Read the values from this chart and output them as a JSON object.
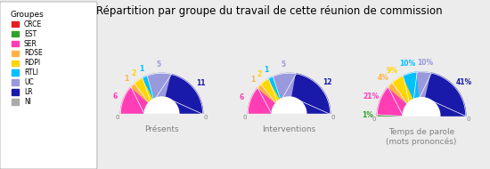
{
  "title": "Répartition par groupe du travail de cette réunion de commission",
  "groups": [
    "CRCE",
    "EST",
    "SER",
    "RDSE",
    "RDPI",
    "RTLI",
    "UC",
    "LR",
    "NI"
  ],
  "colors": [
    "#e31e24",
    "#33a02c",
    "#ff3eb5",
    "#ffb347",
    "#ffd700",
    "#00bfff",
    "#9999dd",
    "#1a1aaa",
    "#aaaaaa"
  ],
  "presentes": [
    0,
    0,
    6,
    1,
    2,
    1,
    5,
    11,
    0
  ],
  "interventions": [
    0,
    0,
    6,
    1,
    2,
    1,
    5,
    12,
    0
  ],
  "temps_parole": [
    0,
    1,
    21,
    4,
    9,
    10,
    10,
    41,
    0
  ],
  "chart_labels": [
    "Présents",
    "Interventions",
    "Temps de parole\n(mots prononcés)"
  ],
  "background": "#ececec",
  "legend_title": "Groupes"
}
